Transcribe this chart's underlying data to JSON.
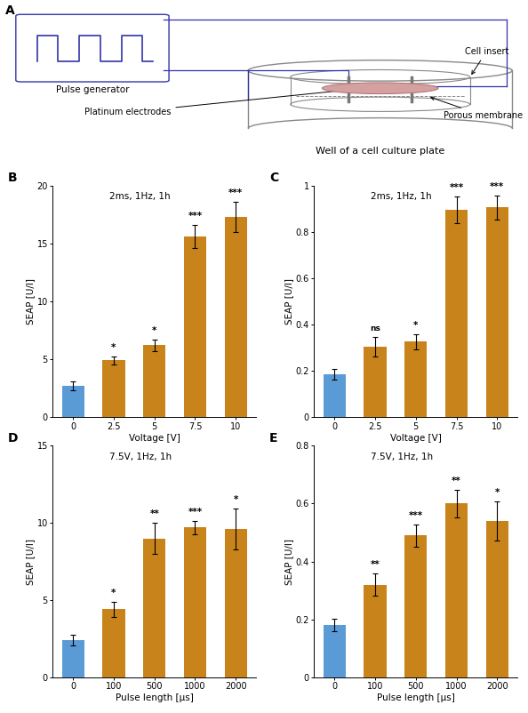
{
  "panel_B": {
    "title": "2ms, 1Hz, 1h",
    "xlabel": "Voltage [V]",
    "ylabel": "SEAP [U/l]",
    "categories": [
      "0",
      "2.5",
      "5",
      "7.5",
      "10"
    ],
    "values": [
      2.7,
      4.9,
      6.2,
      15.6,
      17.3
    ],
    "errors": [
      0.4,
      0.35,
      0.5,
      1.0,
      1.3
    ],
    "colors": [
      "#5B9BD5",
      "#C8831A",
      "#C8831A",
      "#C8831A",
      "#C8831A"
    ],
    "significance": [
      "",
      "*",
      "*",
      "***",
      "***"
    ],
    "ylim": [
      0,
      20
    ],
    "yticks": [
      0,
      5,
      10,
      15,
      20
    ]
  },
  "panel_C": {
    "title": "2ms, 1Hz, 1h",
    "xlabel": "Voltage [V]",
    "ylabel": "SEAP [U/l]",
    "categories": [
      "0",
      "2.5",
      "5",
      "7.5",
      "10"
    ],
    "values": [
      0.185,
      0.305,
      0.325,
      0.895,
      0.905
    ],
    "errors": [
      0.022,
      0.042,
      0.032,
      0.058,
      0.052
    ],
    "colors": [
      "#5B9BD5",
      "#C8831A",
      "#C8831A",
      "#C8831A",
      "#C8831A"
    ],
    "significance": [
      "",
      "ns",
      "*",
      "***",
      "***"
    ],
    "ylim": [
      0.0,
      1.0
    ],
    "yticks": [
      0.0,
      0.2,
      0.4,
      0.6,
      0.8,
      1.0
    ]
  },
  "panel_D": {
    "title": "7.5V, 1Hz, 1h",
    "xlabel": "Pulse length [μs]",
    "ylabel": "SEAP [U/l]",
    "categories": [
      "0",
      "100",
      "500",
      "1000",
      "2000"
    ],
    "values": [
      2.4,
      4.4,
      9.0,
      9.7,
      9.6
    ],
    "errors": [
      0.35,
      0.5,
      1.0,
      0.42,
      1.3
    ],
    "colors": [
      "#5B9BD5",
      "#C8831A",
      "#C8831A",
      "#C8831A",
      "#C8831A"
    ],
    "significance": [
      "",
      "*",
      "**",
      "***",
      "*"
    ],
    "ylim": [
      0,
      15
    ],
    "yticks": [
      0,
      5,
      10,
      15
    ]
  },
  "panel_E": {
    "title": "7.5V, 1Hz, 1h",
    "xlabel": "Pulse length [μs]",
    "ylabel": "SEAP [U/l]",
    "categories": [
      "0",
      "100",
      "500",
      "1000",
      "2000"
    ],
    "values": [
      0.18,
      0.32,
      0.49,
      0.6,
      0.54
    ],
    "errors": [
      0.022,
      0.038,
      0.038,
      0.048,
      0.068
    ],
    "colors": [
      "#5B9BD5",
      "#C8831A",
      "#C8831A",
      "#C8831A",
      "#C8831A"
    ],
    "significance": [
      "",
      "**",
      "***",
      "**",
      "*"
    ],
    "ylim": [
      0.0,
      0.8
    ],
    "yticks": [
      0.0,
      0.2,
      0.4,
      0.6,
      0.8
    ]
  },
  "bar_width": 0.55,
  "bg_color": "#FFFFFF",
  "fontsize_title": 7.5,
  "fontsize_label": 7.5,
  "fontsize_tick": 7,
  "fontsize_sig": 7.5,
  "fontsize_panel": 10,
  "wire_color": "#3333AA",
  "container_color": "#888888",
  "cell_face": "#D4A0A0",
  "cell_edge": "#B07070"
}
